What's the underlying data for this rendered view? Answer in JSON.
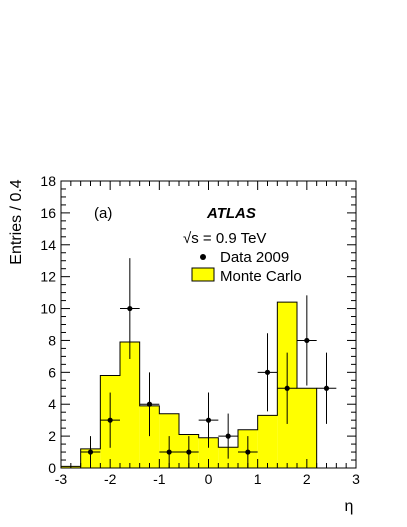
{
  "chart_data": {
    "type": "histogram",
    "ylabel": "Entries / 0.4",
    "xlabel": "η",
    "xlim": [
      -3,
      3
    ],
    "ylim": [
      0,
      18
    ],
    "x_ticks": [
      "-3",
      "-2",
      "-1",
      "0",
      "1",
      "2",
      "3"
    ],
    "y_ticks": [
      "0",
      "2",
      "4",
      "6",
      "8",
      "10",
      "12",
      "14",
      "16",
      "18"
    ],
    "panel_label": "(a)",
    "experiment_label": "ATLAS",
    "energy_label": "√s = 0.9 TeV",
    "colors": {
      "mc_fill": "#ffff00",
      "line": "#000000"
    },
    "legend": [
      {
        "name": "Data 2009",
        "marker": "dot"
      },
      {
        "name": "Monte Carlo",
        "marker": "filled-box"
      }
    ],
    "monte_carlo": {
      "name": "Monte Carlo",
      "bin_edges": [
        -3.0,
        -2.6,
        -2.2,
        -1.8,
        -1.4,
        -1.0,
        -0.6,
        -0.2,
        0.2,
        0.6,
        1.0,
        1.4,
        1.8,
        2.2,
        2.6
      ],
      "values": [
        0.1,
        1.2,
        5.8,
        7.9,
        3.9,
        3.4,
        2.1,
        1.9,
        1.3,
        2.4,
        3.3,
        10.4,
        5.0,
        0.0
      ]
    },
    "data": {
      "name": "Data 2009",
      "x": [
        -2.4,
        -2.0,
        -1.6,
        -1.2,
        -0.8,
        -0.4,
        0.0,
        0.4,
        0.8,
        1.2,
        1.6,
        2.0,
        2.4
      ],
      "y": [
        1,
        3,
        10,
        4,
        1,
        1,
        3,
        2,
        1,
        6,
        5,
        8,
        5
      ],
      "x_err": 0.2
    }
  }
}
